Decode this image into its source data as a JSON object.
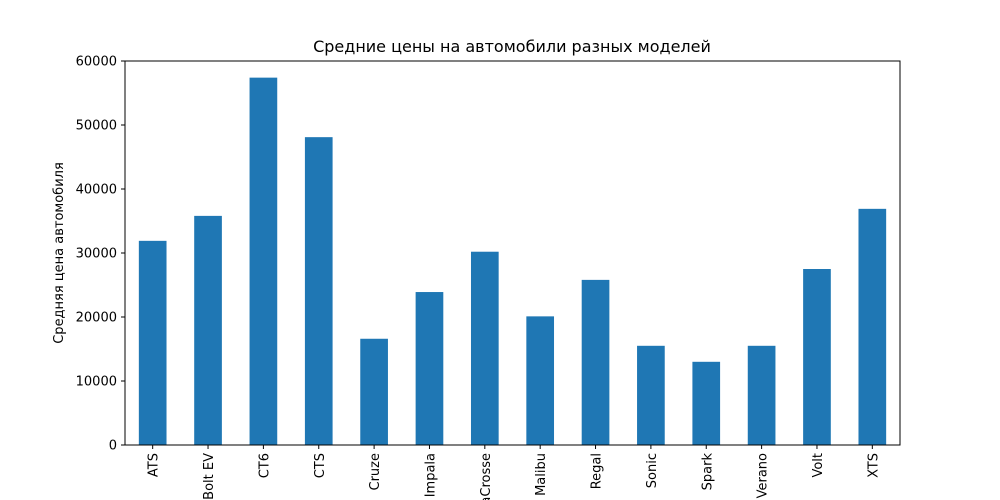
{
  "chart_data": {
    "type": "bar",
    "title": "Средние цены на автомобили разных моделей",
    "xlabel": "",
    "ylabel": "Средняя цена автомобиля",
    "categories": [
      "ATS",
      "Bolt EV",
      "CT6",
      "CTS",
      "Cruze",
      "Impala",
      "LaCrosse",
      "Malibu",
      "Regal",
      "Sonic",
      "Spark",
      "Verano",
      "Volt",
      "XTS"
    ],
    "values": [
      31900,
      35800,
      57400,
      48100,
      16600,
      23900,
      30200,
      20100,
      25800,
      15500,
      13000,
      15500,
      27500,
      36900
    ],
    "ylim": [
      0,
      60000
    ],
    "yticks": [
      0,
      10000,
      20000,
      30000,
      40000,
      50000,
      60000
    ],
    "bar_color": "#1f77b4",
    "grid": false,
    "legend": "none"
  }
}
